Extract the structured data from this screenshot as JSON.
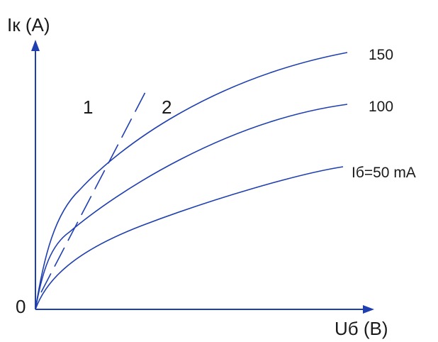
{
  "diagram": {
    "y_axis_label": "Iк (A)",
    "x_axis_label": "Uб (B)",
    "origin_label": "0",
    "region_labels": [
      "1",
      "2"
    ],
    "curve_labels": {
      "top": "150",
      "middle": "100",
      "bottom": "Iб=50 mA"
    },
    "line_color": "#1f3fb0"
  }
}
